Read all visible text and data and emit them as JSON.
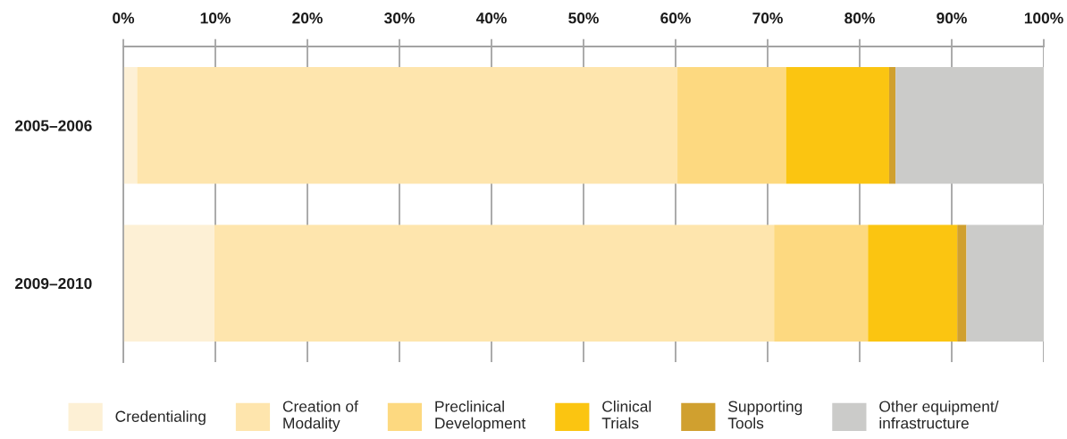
{
  "chart_data": {
    "type": "bar",
    "orientation": "horizontal",
    "stacked": true,
    "categories": [
      "2005–2006",
      "2009–2010"
    ],
    "series": [
      {
        "name": "Credentialing",
        "color": "#fdf0d5",
        "values": [
          1.5,
          9.9
        ]
      },
      {
        "name": "Creation of\nModality",
        "color": "#fee5ad",
        "values": [
          58.7,
          60.8
        ]
      },
      {
        "name": "Preclinical\nDevelopment",
        "color": "#fdd980",
        "values": [
          11.8,
          10.2
        ]
      },
      {
        "name": "Clinical\nTrials",
        "color": "#fbc511",
        "values": [
          11.2,
          9.7
        ]
      },
      {
        "name": "Supporting\nTools",
        "color": "#d0a02f",
        "values": [
          0.7,
          1.0
        ]
      },
      {
        "name": "Other equipment/\ninfrastructure",
        "color": "#cbcbc9",
        "values": [
          16.1,
          8.4
        ]
      }
    ],
    "xlim": [
      0,
      100
    ],
    "xticks": [
      {
        "value": 0,
        "label": "0%"
      },
      {
        "value": 10,
        "label": "10%"
      },
      {
        "value": 20,
        "label": "20%"
      },
      {
        "value": 30,
        "label": "30%"
      },
      {
        "value": 40,
        "label": "40%"
      },
      {
        "value": 50,
        "label": "50%"
      },
      {
        "value": 60,
        "label": "60%"
      },
      {
        "value": 70,
        "label": "70%"
      },
      {
        "value": 80,
        "label": "80%"
      },
      {
        "value": 90,
        "label": "90%"
      },
      {
        "value": 100,
        "label": "100%"
      }
    ],
    "grid": "x",
    "legend": "bottom"
  }
}
